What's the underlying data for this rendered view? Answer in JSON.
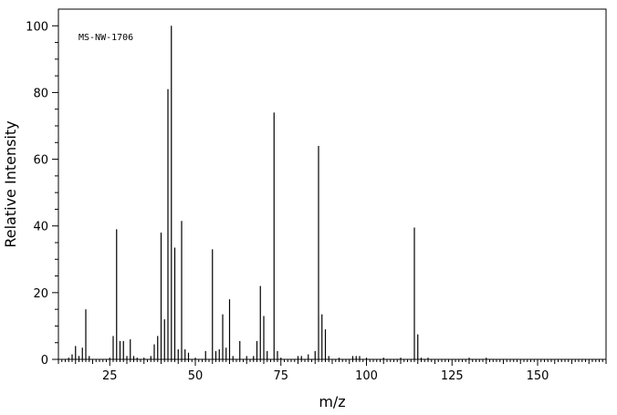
{
  "chart_data": {
    "type": "bar",
    "title": "",
    "annotation": "MS-NW-1706",
    "xlabel": "m/z",
    "ylabel": "Relative Intensity",
    "xlim": [
      10,
      170
    ],
    "ylim": [
      0,
      105
    ],
    "x_major_ticks": [
      25,
      50,
      75,
      100,
      125,
      150
    ],
    "x_minor_step": 1,
    "x_medium_step": 5,
    "y_major_ticks": [
      0,
      20,
      40,
      60,
      80,
      100
    ],
    "y_minor_step": 5,
    "grid": false,
    "legend": "none",
    "peaks": [
      {
        "mz": 13,
        "intensity": 0.5
      },
      {
        "mz": 14,
        "intensity": 1.5
      },
      {
        "mz": 15,
        "intensity": 4
      },
      {
        "mz": 16,
        "intensity": 1
      },
      {
        "mz": 17,
        "intensity": 3.5
      },
      {
        "mz": 18,
        "intensity": 15
      },
      {
        "mz": 19,
        "intensity": 1
      },
      {
        "mz": 25,
        "intensity": 0.5
      },
      {
        "mz": 26,
        "intensity": 7
      },
      {
        "mz": 27,
        "intensity": 39
      },
      {
        "mz": 28,
        "intensity": 5.5
      },
      {
        "mz": 29,
        "intensity": 5.5
      },
      {
        "mz": 30,
        "intensity": 1
      },
      {
        "mz": 31,
        "intensity": 6
      },
      {
        "mz": 32,
        "intensity": 1
      },
      {
        "mz": 33,
        "intensity": 0.5
      },
      {
        "mz": 35,
        "intensity": 0.5
      },
      {
        "mz": 37,
        "intensity": 1
      },
      {
        "mz": 38,
        "intensity": 4.5
      },
      {
        "mz": 39,
        "intensity": 7
      },
      {
        "mz": 40,
        "intensity": 38
      },
      {
        "mz": 41,
        "intensity": 12
      },
      {
        "mz": 42,
        "intensity": 81
      },
      {
        "mz": 43,
        "intensity": 100
      },
      {
        "mz": 44,
        "intensity": 33.5
      },
      {
        "mz": 45,
        "intensity": 3
      },
      {
        "mz": 46,
        "intensity": 41.5
      },
      {
        "mz": 47,
        "intensity": 3
      },
      {
        "mz": 48,
        "intensity": 2
      },
      {
        "mz": 50,
        "intensity": 0.5
      },
      {
        "mz": 53,
        "intensity": 2.5
      },
      {
        "mz": 55,
        "intensity": 33
      },
      {
        "mz": 56,
        "intensity": 2.5
      },
      {
        "mz": 57,
        "intensity": 3
      },
      {
        "mz": 58,
        "intensity": 13.5
      },
      {
        "mz": 59,
        "intensity": 3.5
      },
      {
        "mz": 60,
        "intensity": 18
      },
      {
        "mz": 61,
        "intensity": 1
      },
      {
        "mz": 63,
        "intensity": 5.5
      },
      {
        "mz": 65,
        "intensity": 1
      },
      {
        "mz": 67,
        "intensity": 1
      },
      {
        "mz": 68,
        "intensity": 5.5
      },
      {
        "mz": 69,
        "intensity": 22
      },
      {
        "mz": 70,
        "intensity": 13
      },
      {
        "mz": 71,
        "intensity": 2.5
      },
      {
        "mz": 73,
        "intensity": 74
      },
      {
        "mz": 74,
        "intensity": 2.5
      },
      {
        "mz": 75,
        "intensity": 0.5
      },
      {
        "mz": 80,
        "intensity": 1
      },
      {
        "mz": 81,
        "intensity": 1
      },
      {
        "mz": 83,
        "intensity": 1.5
      },
      {
        "mz": 85,
        "intensity": 2.5
      },
      {
        "mz": 86,
        "intensity": 64
      },
      {
        "mz": 87,
        "intensity": 13.5
      },
      {
        "mz": 88,
        "intensity": 9
      },
      {
        "mz": 89,
        "intensity": 1
      },
      {
        "mz": 92,
        "intensity": 0.5
      },
      {
        "mz": 96,
        "intensity": 1
      },
      {
        "mz": 97,
        "intensity": 1
      },
      {
        "mz": 98,
        "intensity": 1
      },
      {
        "mz": 100,
        "intensity": 0.5
      },
      {
        "mz": 105,
        "intensity": 0.5
      },
      {
        "mz": 110,
        "intensity": 0.5
      },
      {
        "mz": 114,
        "intensity": 39.5
      },
      {
        "mz": 115,
        "intensity": 7.5
      },
      {
        "mz": 116,
        "intensity": 0.5
      },
      {
        "mz": 118,
        "intensity": 0.5
      },
      {
        "mz": 130,
        "intensity": 0.5
      },
      {
        "mz": 135,
        "intensity": 0.5
      }
    ]
  }
}
